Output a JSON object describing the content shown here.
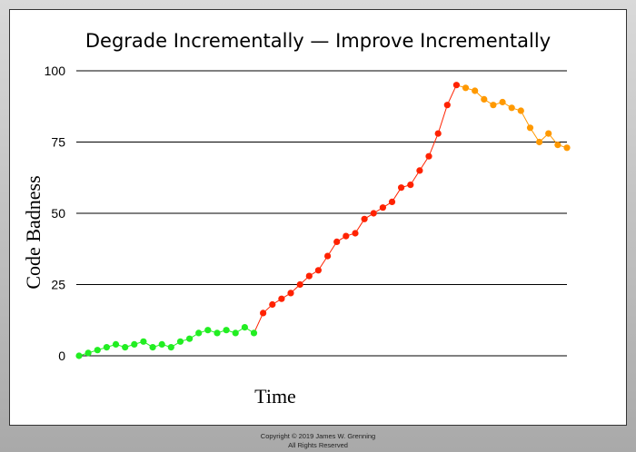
{
  "chart_data": {
    "type": "line",
    "title": "Degrade Incrementally — Improve Incrementally",
    "xlabel": "Time",
    "ylabel": "Code Badness",
    "ylim": [
      0,
      100
    ],
    "yticks": [
      0,
      25,
      50,
      75,
      100
    ],
    "grid": "horizontal",
    "legend": "none",
    "x": [
      1,
      2,
      3,
      4,
      5,
      6,
      7,
      8,
      9,
      10,
      11,
      12,
      13,
      14,
      15,
      16,
      17,
      18,
      19,
      20,
      21,
      22,
      23,
      24,
      25,
      26,
      27,
      28,
      29,
      30,
      31,
      32,
      33,
      34,
      35,
      36,
      37,
      38,
      39,
      40,
      41,
      42,
      43,
      44,
      45,
      46,
      47,
      48,
      49,
      50,
      51,
      52,
      53
    ],
    "series": [
      {
        "color": "#22ee22",
        "points": [
          [
            1,
            0
          ],
          [
            2,
            1
          ],
          [
            3,
            2
          ],
          [
            4,
            3
          ],
          [
            5,
            4
          ],
          [
            6,
            3
          ],
          [
            7,
            4
          ],
          [
            8,
            5
          ],
          [
            9,
            3
          ],
          [
            10,
            4
          ],
          [
            11,
            3
          ],
          [
            12,
            5
          ],
          [
            13,
            6
          ],
          [
            14,
            8
          ],
          [
            15,
            9
          ],
          [
            16,
            8
          ],
          [
            17,
            9
          ],
          [
            18,
            8
          ],
          [
            19,
            10
          ],
          [
            20,
            8
          ]
        ]
      },
      {
        "color": "#ff2200",
        "points": [
          [
            20,
            8
          ],
          [
            21,
            15
          ],
          [
            22,
            18
          ],
          [
            23,
            20
          ],
          [
            24,
            22
          ],
          [
            25,
            25
          ],
          [
            26,
            28
          ],
          [
            27,
            30
          ],
          [
            28,
            35
          ],
          [
            29,
            40
          ],
          [
            30,
            42
          ],
          [
            31,
            43
          ],
          [
            32,
            48
          ],
          [
            33,
            50
          ],
          [
            34,
            52
          ],
          [
            35,
            54
          ],
          [
            36,
            59
          ],
          [
            37,
            60
          ],
          [
            38,
            65
          ],
          [
            39,
            70
          ],
          [
            40,
            78
          ],
          [
            41,
            88
          ],
          [
            42,
            95
          ]
        ]
      },
      {
        "color": "#ff9900",
        "points": [
          [
            42,
            95
          ],
          [
            43,
            94
          ],
          [
            44,
            93
          ],
          [
            45,
            90
          ],
          [
            46,
            88
          ],
          [
            47,
            89
          ],
          [
            48,
            87
          ],
          [
            49,
            86
          ],
          [
            50,
            80
          ],
          [
            51,
            75
          ],
          [
            52,
            78
          ],
          [
            53,
            74
          ],
          [
            54,
            73
          ]
        ]
      }
    ]
  },
  "footer": {
    "copyright": "Copyright © 2019 James W. Grenning",
    "rights": "All Rights Reserved"
  }
}
